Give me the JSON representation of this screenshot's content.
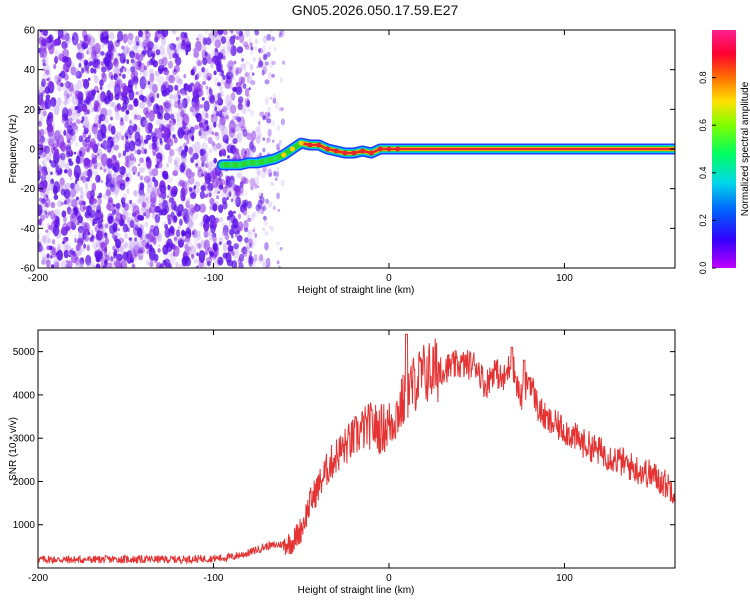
{
  "figure_title": "GN05.2026.050.17.59.E27",
  "colors": {
    "scatter": "#7a1fe0",
    "line": "#e53333",
    "axis": "#000000",
    "track_core": "#e6262e",
    "track_mid": "#2bd42b",
    "track_edge": "#1f3cff"
  },
  "chart_data": [
    {
      "type": "heatmap",
      "title": "",
      "xlabel": "Height of straight line (km)",
      "ylabel": "Frequency (Hz)",
      "xlim": [
        -200,
        163
      ],
      "ylim": [
        -60,
        60
      ],
      "xticks": [
        -200,
        -100,
        0,
        100
      ],
      "yticks": [
        -60,
        -40,
        -20,
        0,
        20,
        40,
        60
      ],
      "grid": false,
      "colorbar": {
        "label": "Normalized spectral amplitude",
        "range": [
          0,
          1
        ],
        "ticks": [
          "0.0",
          "0.2",
          "0.4",
          "0.6",
          "0.8"
        ],
        "colormap": [
          "#c000ff",
          "#3000ff",
          "#0080ff",
          "#00e0e0",
          "#00ff40",
          "#a0ff00",
          "#ffe000",
          "#ff6000",
          "#ff0040",
          "#ff20a0"
        ]
      },
      "noise_region": {
        "x_from": -200,
        "x_to": -60,
        "dense_to": -90,
        "amplitude": "0.0-0.2"
      },
      "track": {
        "x": [
          -95,
          -90,
          -85,
          -80,
          -75,
          -70,
          -65,
          -60,
          -55,
          -50,
          -45,
          -40,
          -35,
          -30,
          -25,
          -20,
          -15,
          -10,
          -5,
          0,
          5,
          163
        ],
        "frequency": [
          -8,
          -8,
          -8,
          -7,
          -7,
          -6,
          -5,
          -3,
          0,
          3,
          2,
          2,
          0,
          -1,
          -2,
          -2,
          -1,
          -2,
          0,
          0,
          0,
          0
        ],
        "amplitude": [
          0.45,
          0.45,
          0.5,
          0.5,
          0.5,
          0.55,
          0.6,
          0.7,
          0.8,
          0.85,
          0.9,
          0.9,
          0.9,
          0.95,
          0.95,
          0.95,
          0.95,
          0.95,
          0.95,
          1.0,
          1.0,
          1.0
        ]
      }
    },
    {
      "type": "line",
      "title": "",
      "xlabel": "Height of straight line (km)",
      "ylabel": "SNR (10 * v/v)",
      "xlim": [
        -200,
        163
      ],
      "ylim": [
        0,
        5500
      ],
      "xticks": [
        -200,
        -100,
        0,
        100
      ],
      "yticks": [
        1000,
        2000,
        3000,
        4000,
        5000
      ],
      "grid": false,
      "series": [
        {
          "name": "SNR",
          "x": [
            -200,
            -180,
            -160,
            -140,
            -120,
            -100,
            -90,
            -80,
            -70,
            -60,
            -55,
            -50,
            -45,
            -40,
            -35,
            -30,
            -25,
            -20,
            -15,
            -10,
            -5,
            0,
            5,
            10,
            15,
            20,
            30,
            40,
            50,
            55,
            60,
            65,
            70,
            75,
            80,
            85,
            90,
            100,
            110,
            120,
            130,
            140,
            150,
            163
          ],
          "y": [
            200,
            190,
            200,
            200,
            200,
            220,
            250,
            350,
            500,
            550,
            600,
            900,
            1500,
            1900,
            2300,
            2600,
            2800,
            3000,
            3200,
            3300,
            3200,
            3300,
            3600,
            4000,
            4300,
            4500,
            4600,
            4700,
            4700,
            4200,
            4600,
            4300,
            4800,
            3900,
            4400,
            3700,
            3400,
            3200,
            2900,
            2700,
            2500,
            2300,
            2150,
            1800
          ]
        }
      ],
      "annotations": [
        {
          "x": 10,
          "y": 5400
        },
        {
          "x": 70,
          "y": 5100
        },
        {
          "x": 77,
          "y": 4800
        }
      ]
    }
  ]
}
